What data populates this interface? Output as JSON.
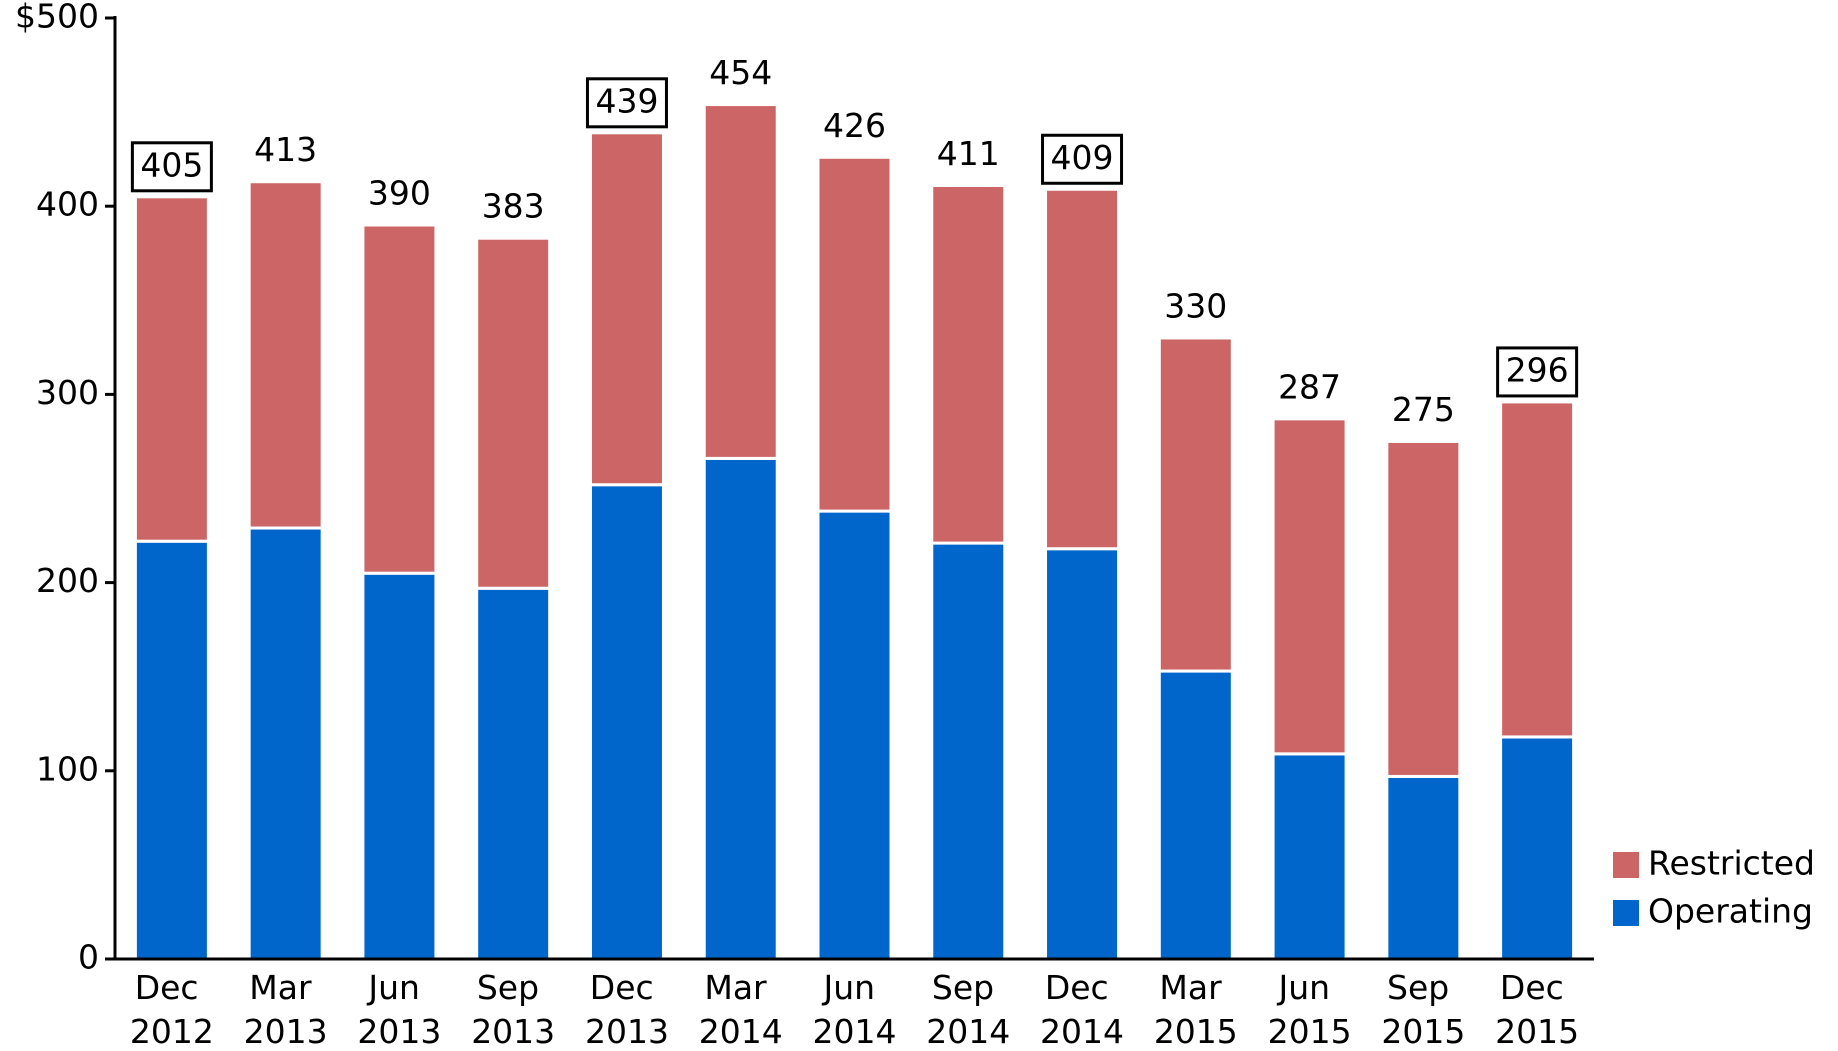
{
  "chart_data": {
    "type": "stacked_bar",
    "categories": [
      "Dec 2012",
      "Mar 2013",
      "Jun 2013",
      "Sep 2013",
      "Dec 2013",
      "Mar 2014",
      "Jun 2014",
      "Sep 2014",
      "Dec 2014",
      "Mar 2015",
      "Jun 2015",
      "Sep 2015",
      "Dec 2015"
    ],
    "series": [
      {
        "name": "Operating",
        "color": "#0066cc",
        "values": [
          222,
          229,
          205,
          197,
          252,
          266,
          238,
          221,
          218,
          153,
          109,
          97,
          118
        ]
      },
      {
        "name": "Restricted",
        "color": "#cc6666",
        "values": [
          183,
          184,
          185,
          186,
          187,
          188,
          188,
          190,
          191,
          177,
          178,
          178,
          178
        ]
      }
    ],
    "totals": [
      405,
      413,
      390,
      383,
      439,
      454,
      426,
      411,
      409,
      330,
      287,
      275,
      296
    ],
    "boxed_totals": [
      true,
      false,
      false,
      false,
      true,
      false,
      false,
      false,
      true,
      false,
      false,
      false,
      true
    ],
    "ylim": [
      0,
      500
    ],
    "yticks": [
      0,
      100,
      200,
      300,
      400,
      {
        "value": 500,
        "label": "$500"
      }
    ],
    "legend": "lower right"
  }
}
